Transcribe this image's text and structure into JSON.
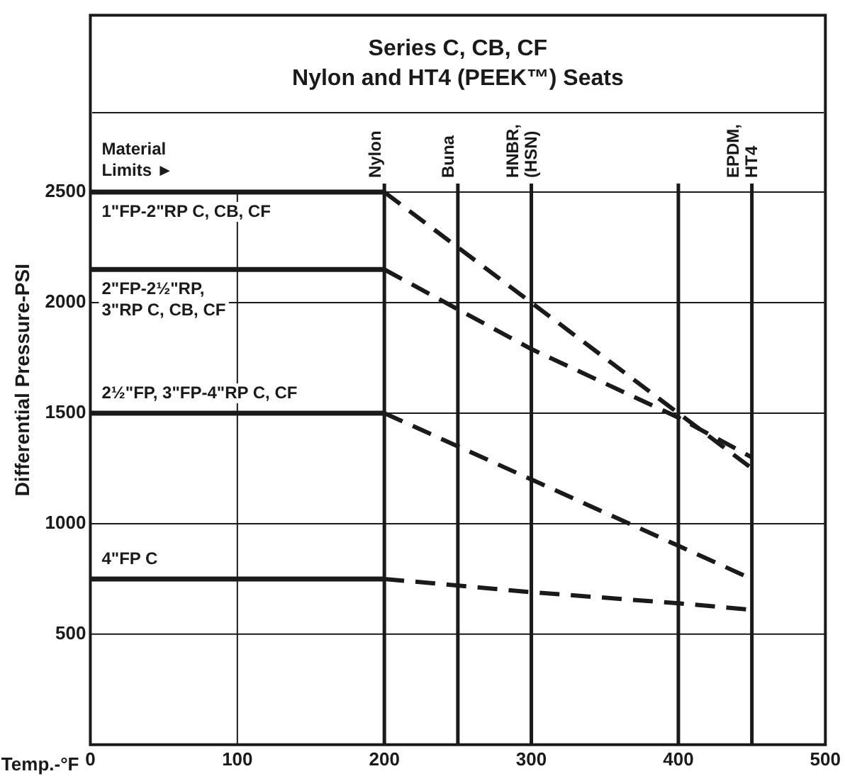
{
  "chart_data": {
    "type": "line",
    "title": "Series C, CB, CF\nNylon and HT4 (PEEK™) Seats",
    "xlabel": "Temp.-°F",
    "ylabel": "Differential Pressure-PSI",
    "xlim": [
      0,
      500
    ],
    "xticks": [
      0,
      100,
      200,
      300,
      400,
      500
    ],
    "ylim": [
      0,
      3300
    ],
    "yticks": [
      500,
      1000,
      1500,
      2000,
      2500
    ],
    "grid": true,
    "legend": false,
    "marker": "none",
    "series": [
      {
        "color": "#1a1a1a",
        "line_style": "solid",
        "x": [
          0,
          200
        ],
        "values": [
          2500,
          2500
        ]
      },
      {
        "color": "#1a1a1a",
        "line_style": "dashed",
        "x": [
          200,
          300,
          400,
          450
        ],
        "values": [
          2500,
          2000,
          1500,
          1250
        ]
      },
      {
        "color": "#1a1a1a",
        "line_style": "solid",
        "x": [
          0,
          200
        ],
        "values": [
          2150,
          2150
        ]
      },
      {
        "color": "#1a1a1a",
        "line_style": "dashed",
        "x": [
          200,
          250,
          300,
          400,
          450
        ],
        "values": [
          2150,
          1970,
          1790,
          1480,
          1300
        ]
      },
      {
        "color": "#1a1a1a",
        "line_style": "solid",
        "x": [
          0,
          200
        ],
        "values": [
          1500,
          1500
        ]
      },
      {
        "color": "#1a1a1a",
        "line_style": "dashed",
        "x": [
          200,
          300,
          400,
          450
        ],
        "values": [
          1500,
          1200,
          900,
          750
        ]
      },
      {
        "color": "#1a1a1a",
        "line_style": "solid",
        "x": [
          0,
          200
        ],
        "values": [
          750,
          750
        ]
      },
      {
        "color": "#1a1a1a",
        "line_style": "dashed",
        "x": [
          200,
          300,
          400,
          450
        ],
        "values": [
          750,
          690,
          640,
          610
        ]
      }
    ],
    "ref_lines": [
      {
        "axis": "x",
        "value": 200,
        "label": "Nylon",
        "color": "#1a1a1a"
      },
      {
        "axis": "x",
        "value": 250,
        "label": "Buna",
        "color": "#1a1a1a"
      },
      {
        "axis": "x",
        "value": 300,
        "label": "HNBR,\n(HSN)",
        "color": "#1a1a1a"
      },
      {
        "axis": "x",
        "value": 400,
        "label": null,
        "color": "#1a1a1a"
      },
      {
        "axis": "x",
        "value": 450,
        "label": "EPDM,\nHT4",
        "color": "#1a1a1a"
      }
    ],
    "annotations": [
      "Material Limits ►",
      "1\"FP-2\"RP C, CB, CF",
      "2\"FP-2½\"RP,\n3\"RP C, CB, CF",
      "2½\"FP, 3\"FP-4\"RP C, CF",
      "4\"FP C"
    ]
  }
}
